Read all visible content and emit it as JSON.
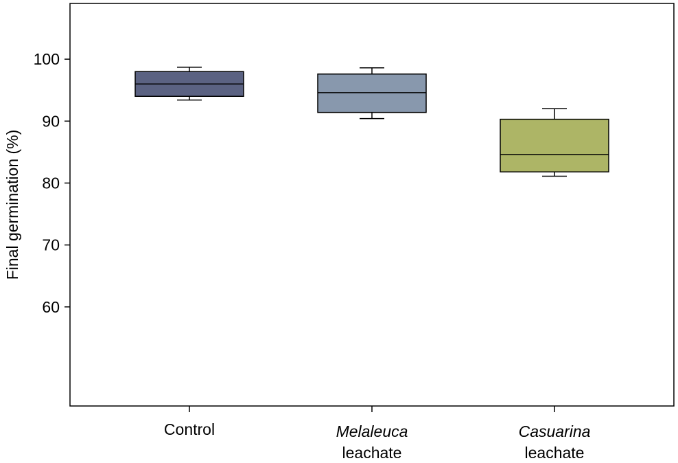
{
  "chart_data": {
    "type": "box",
    "ylabel": "Final germination (%)",
    "ylim": [
      44,
      109
    ],
    "yticks": [
      60,
      70,
      80,
      90,
      100
    ],
    "grid": false,
    "categories": [
      {
        "italic": "",
        "plain": "Control"
      },
      {
        "italic": "Melaleuca",
        "plain": "leachate"
      },
      {
        "italic": "Casuarina",
        "plain": "leachate"
      }
    ],
    "boxes": [
      {
        "whisker_low": 93.4,
        "q1": 94.0,
        "median": 96.0,
        "q3": 98.0,
        "whisker_high": 98.7,
        "color": "#5b6282"
      },
      {
        "whisker_low": 90.4,
        "q1": 91.4,
        "median": 94.6,
        "q3": 97.6,
        "whisker_high": 98.6,
        "color": "#8898ad"
      },
      {
        "whisker_low": 81.1,
        "q1": 81.8,
        "median": 84.6,
        "q3": 90.3,
        "whisker_high": 92.0,
        "color": "#adb566"
      }
    ]
  }
}
